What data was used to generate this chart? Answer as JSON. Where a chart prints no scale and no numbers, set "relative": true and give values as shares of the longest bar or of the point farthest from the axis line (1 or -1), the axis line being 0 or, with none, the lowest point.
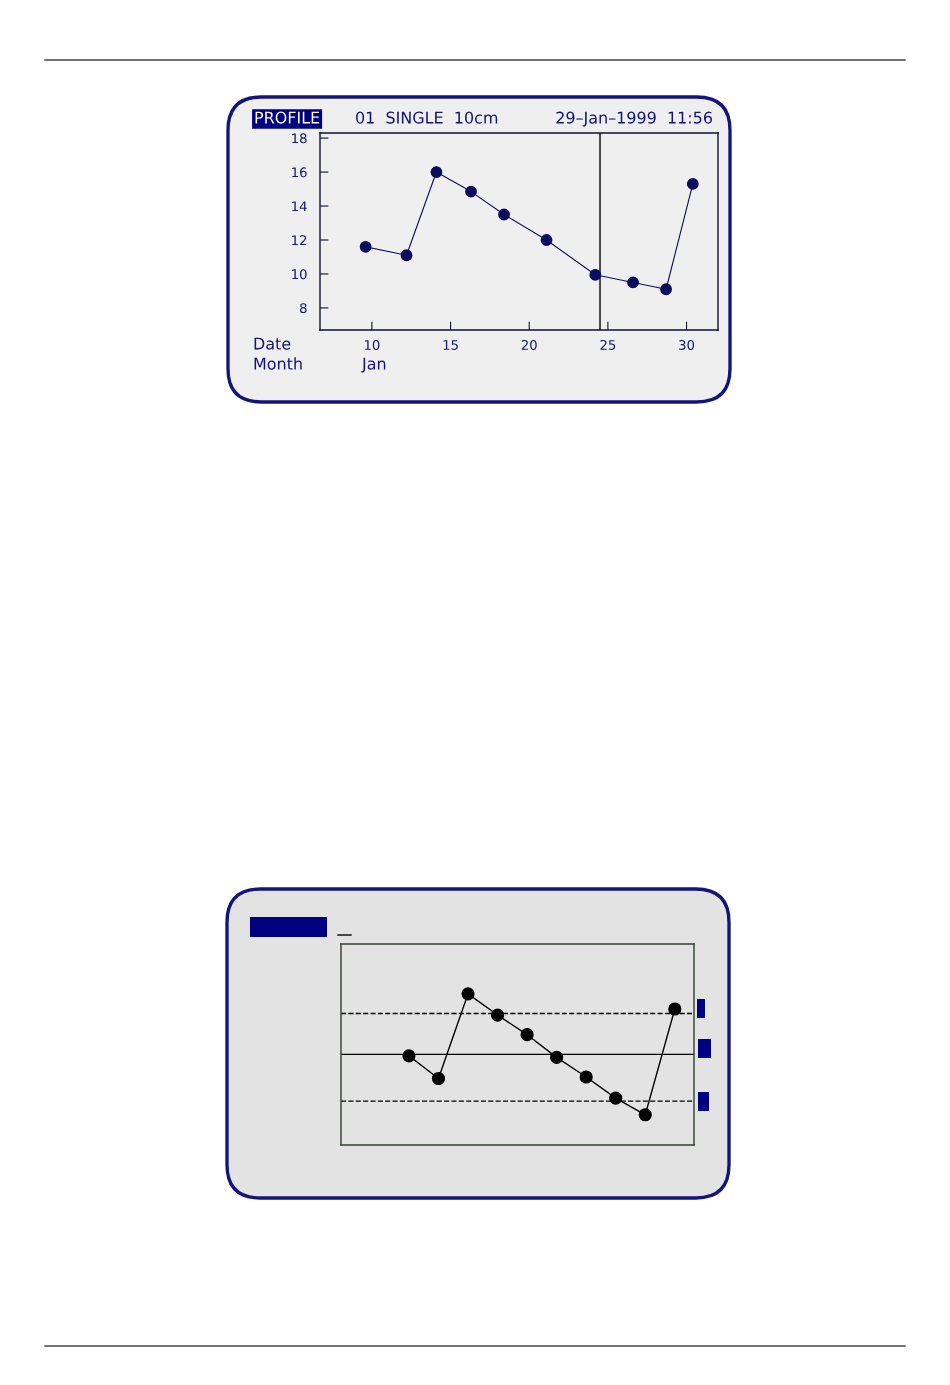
{
  "chart_data": [
    {
      "type": "line",
      "title": "PROFILE",
      "subtitle": "01  SINGLE  10cm",
      "xlabel": "Date",
      "annotations": [
        "29–Jan–1999  11:56",
        "Month",
        "Jan"
      ],
      "x": [
        9.6,
        12.2,
        14.1,
        16.3,
        18.4,
        21.1,
        24.2,
        26.6,
        28.7,
        30.4
      ],
      "series": [
        {
          "color": "#0d0d5e",
          "values": [
            11.6,
            11.1,
            16.0,
            14.85,
            13.5,
            12.0,
            9.95,
            9.5,
            9.1,
            15.3
          ]
        }
      ],
      "xlim": [
        6.7,
        32
      ],
      "ylim": [
        6.7,
        18.3
      ],
      "xticks": [
        10,
        15,
        20,
        25,
        30
      ],
      "yticks": [
        8,
        10,
        12,
        14,
        16,
        18
      ],
      "ref_lines": [
        {
          "axis": "x",
          "value": 24.5,
          "color": "#000000",
          "line_style": "solid"
        }
      ],
      "marker": "circle",
      "line_style": "solid"
    },
    {
      "type": "line",
      "relative": true,
      "categories": [
        null,
        null,
        null,
        null,
        null,
        null,
        null,
        null,
        null,
        null
      ],
      "series": [
        {
          "color": "#000000",
          "values": [
            0.59,
            0.44,
            1,
            0.86,
            0.73,
            0.58,
            0.45,
            0.31,
            0.2,
            0.9
          ]
        }
      ],
      "ref_lines": [
        {
          "axis": "y",
          "value": 0.87,
          "color": "#000000",
          "line_style": "dashed"
        },
        {
          "axis": "y",
          "value": 0.6,
          "color": "#000000",
          "line_style": "solid"
        },
        {
          "axis": "y",
          "value": 0.29,
          "color": "#000000",
          "line_style": "dashed"
        }
      ],
      "marker": "circle",
      "line_style": "solid"
    }
  ]
}
